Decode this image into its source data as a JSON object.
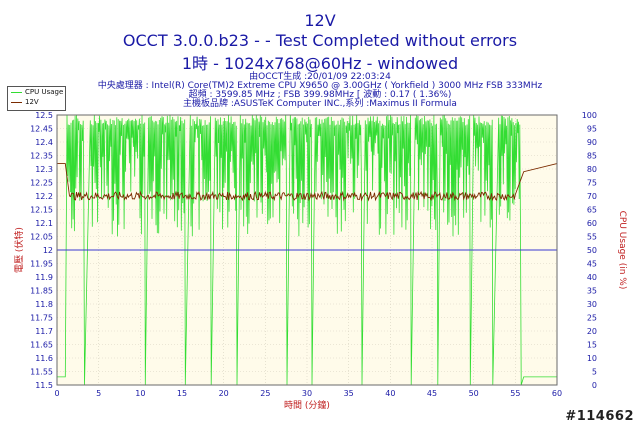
{
  "header": {
    "title": "12V",
    "line2": "OCCT 3.0.0.b23 -  - Test Completed without errors",
    "line3": "1時 - 1024x768@60Hz - windowed",
    "info1": "由OCCT生成 :20/01/09 22:03:24",
    "info2": "中央處理器 : Intel(R) Core(TM)2 Extreme CPU X9650 @ 3.00GHz ( Yorkfield ) 3000 MHz FSB 333MHz",
    "info3": "超頻 : 3599.85 MHz ; FSB 399.98MHz [ 波動 : 0.17 ( 1.36%)",
    "info4": "主機板品牌 :ASUSTeK Computer INC.,系列 :Maximus II Formula"
  },
  "watermark": "#114662",
  "chart_data": {
    "type": "line",
    "xlabel": "時間 (分鐘)",
    "ylabel": "電壓 (伏特)",
    "y2label": "CPU Usage (in %)",
    "xlim": [
      0,
      60
    ],
    "ylim": [
      11.5,
      12.5
    ],
    "y2lim": [
      0,
      100
    ],
    "x_ticks": [
      0,
      5,
      10,
      15,
      20,
      25,
      30,
      35,
      40,
      45,
      50,
      55,
      60
    ],
    "y_ticks": [
      11.5,
      11.55,
      11.6,
      11.65,
      11.7,
      11.75,
      11.8,
      11.85,
      11.9,
      11.95,
      12,
      12.05,
      12.1,
      12.15,
      12.2,
      12.25,
      12.3,
      12.35,
      12.4,
      12.45,
      12.5
    ],
    "y2_ticks": [
      0,
      5,
      10,
      15,
      20,
      25,
      30,
      35,
      40,
      45,
      50,
      55,
      60,
      65,
      70,
      75,
      80,
      85,
      90,
      95,
      100
    ],
    "grid": true,
    "legend_position": "top-left",
    "reference_line": {
      "y": 12.0,
      "color": "#3a3ad0"
    },
    "series": [
      {
        "name": "CPU Usage",
        "color": "#33dd33",
        "axis": "right",
        "points": [
          [
            0,
            3
          ],
          [
            1,
            3
          ],
          [
            1.2,
            100
          ],
          [
            3.3,
            0
          ],
          [
            4,
            98
          ],
          [
            10.6,
            0
          ],
          [
            11,
            99
          ],
          [
            15.4,
            0
          ],
          [
            16,
            100
          ],
          [
            18.5,
            0
          ],
          [
            19,
            99
          ],
          [
            21.6,
            0
          ],
          [
            22,
            100
          ],
          [
            27.6,
            0
          ],
          [
            28,
            100
          ],
          [
            30.6,
            0
          ],
          [
            31,
            99
          ],
          [
            36.6,
            0
          ],
          [
            37,
            98
          ],
          [
            42.5,
            0
          ],
          [
            43,
            99
          ],
          [
            45.7,
            0
          ],
          [
            46,
            99
          ],
          [
            49.6,
            0
          ],
          [
            50,
            100
          ],
          [
            52.3,
            0
          ],
          [
            53,
            99
          ],
          [
            55.7,
            0
          ],
          [
            56,
            3
          ],
          [
            60,
            3
          ]
        ]
      },
      {
        "name": "12V",
        "color": "#7b2b00",
        "axis": "left",
        "points": [
          [
            0,
            12.32
          ],
          [
            1,
            12.32
          ],
          [
            1.5,
            12.2
          ],
          [
            5,
            12.19
          ],
          [
            10,
            12.19
          ],
          [
            15,
            12.19
          ],
          [
            20,
            12.19
          ],
          [
            25,
            12.19
          ],
          [
            30,
            12.19
          ],
          [
            35,
            12.19
          ],
          [
            40,
            12.19
          ],
          [
            45,
            12.19
          ],
          [
            50,
            12.19
          ],
          [
            55,
            12.19
          ],
          [
            56,
            12.29
          ],
          [
            60,
            12.32
          ]
        ]
      }
    ]
  }
}
